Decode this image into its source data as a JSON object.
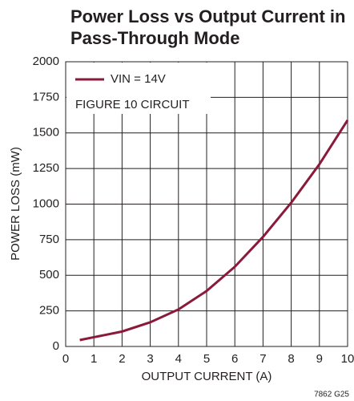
{
  "chart_data": {
    "type": "line",
    "title": [
      "Power Loss vs Output Current in",
      "Pass-Through Mode"
    ],
    "x_label": "OUTPUT CURRENT (A)",
    "y_label": "POWER LOSS (mW)",
    "annotation": "FIGURE 10 CIRCUIT",
    "footnote": "7862 G25",
    "x": [
      0.5,
      1,
      2,
      3,
      4,
      5,
      6,
      7,
      8,
      9,
      10
    ],
    "series": [
      {
        "name": "VIN = 14V",
        "color": "#8b1a3a",
        "values": [
          45,
          65,
          105,
          170,
          260,
          390,
          560,
          770,
          1010,
          1280,
          1590
        ]
      }
    ],
    "xlim": [
      0,
      10
    ],
    "xticks": [
      0,
      1,
      2,
      3,
      4,
      5,
      6,
      7,
      8,
      9,
      10
    ],
    "ylim": [
      0,
      2000
    ],
    "yticks": [
      0,
      250,
      500,
      750,
      1000,
      1250,
      1500,
      1750,
      2000
    ],
    "grid": true,
    "legend": "upper left"
  }
}
